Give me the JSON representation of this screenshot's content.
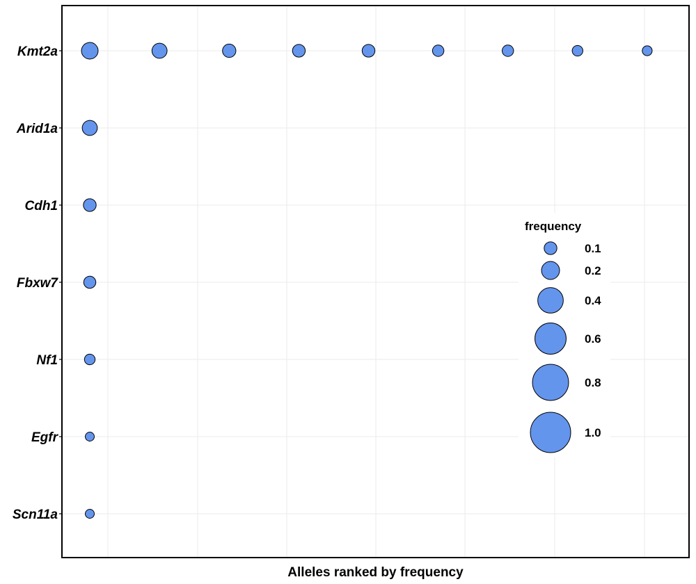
{
  "chart_data": {
    "type": "scatter",
    "title": "",
    "xlabel": "Alleles ranked by frequency",
    "ylabel": "",
    "categories": [
      "Kmt2a",
      "Arid1a",
      "Cdh1",
      "Fbxw7",
      "Nf1",
      "Egfr",
      "Scn11a"
    ],
    "xlim": [
      0.6,
      9.6
    ],
    "grid": true,
    "marker_color": "#6495ED",
    "points": [
      {
        "gene": "Kmt2a",
        "rank": 1,
        "frequency": 0.17
      },
      {
        "gene": "Kmt2a",
        "rank": 2,
        "frequency": 0.14
      },
      {
        "gene": "Kmt2a",
        "rank": 3,
        "frequency": 0.11
      },
      {
        "gene": "Kmt2a",
        "rank": 4,
        "frequency": 0.1
      },
      {
        "gene": "Kmt2a",
        "rank": 5,
        "frequency": 0.1
      },
      {
        "gene": "Kmt2a",
        "rank": 6,
        "frequency": 0.08
      },
      {
        "gene": "Kmt2a",
        "rank": 7,
        "frequency": 0.08
      },
      {
        "gene": "Kmt2a",
        "rank": 8,
        "frequency": 0.07
      },
      {
        "gene": "Kmt2a",
        "rank": 9,
        "frequency": 0.06
      },
      {
        "gene": "Arid1a",
        "rank": 1,
        "frequency": 0.14
      },
      {
        "gene": "Cdh1",
        "rank": 1,
        "frequency": 0.1
      },
      {
        "gene": "Fbxw7",
        "rank": 1,
        "frequency": 0.09
      },
      {
        "gene": "Nf1",
        "rank": 1,
        "frequency": 0.07
      },
      {
        "gene": "Egfr",
        "rank": 1,
        "frequency": 0.05
      },
      {
        "gene": "Scn11a",
        "rank": 1,
        "frequency": 0.05
      }
    ],
    "legend": {
      "title": "frequency",
      "position": "right",
      "entries": [
        {
          "label": "0.1",
          "value": 0.1
        },
        {
          "label": "0.2",
          "value": 0.2
        },
        {
          "label": "0.4",
          "value": 0.4
        },
        {
          "label": "0.6",
          "value": 0.6
        },
        {
          "label": "0.8",
          "value": 0.8
        },
        {
          "label": "1.0",
          "value": 1.0
        }
      ]
    }
  }
}
